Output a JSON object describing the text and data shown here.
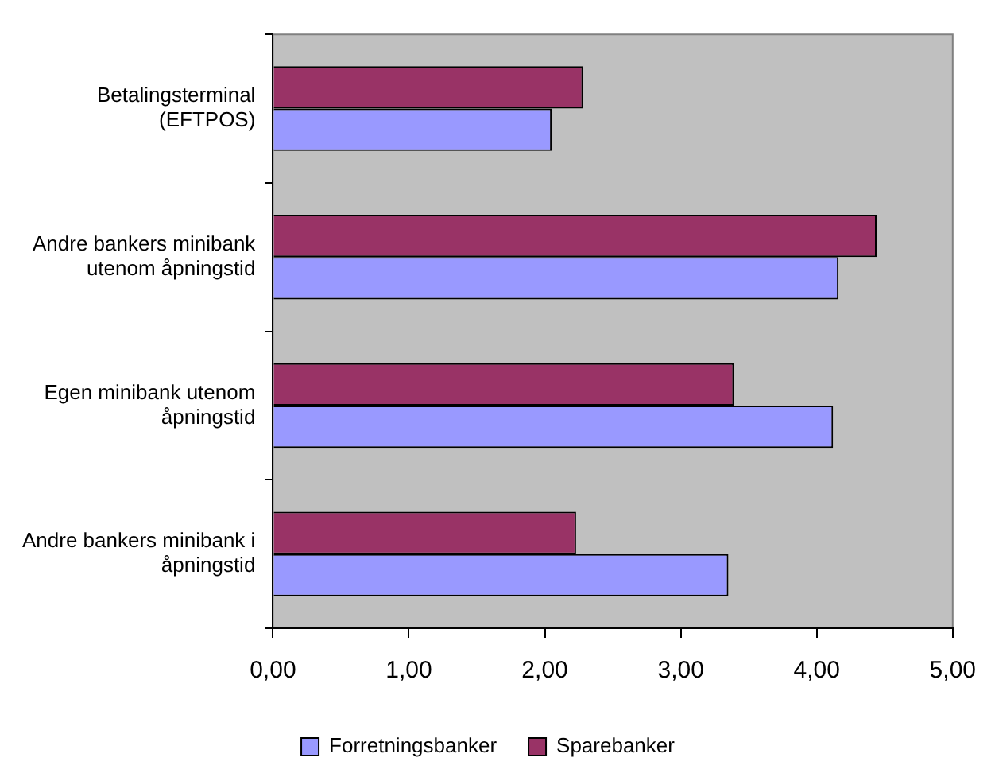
{
  "chart_data": {
    "type": "bar",
    "orientation": "horizontal",
    "categories": [
      "Betalingsterminal (EFTPOS)",
      "Andre bankers minibank utenom åpningstid",
      "Egen minibank utenom åpningstid",
      "Andre bankers minibank i åpningstid"
    ],
    "series": [
      {
        "name": "Forretningsbanker",
        "color": "#9999ff",
        "values": [
          2.05,
          4.16,
          4.12,
          3.35
        ]
      },
      {
        "name": "Sparebanker",
        "color": "#993366",
        "values": [
          2.28,
          4.44,
          3.39,
          2.23
        ]
      }
    ],
    "xlim": [
      0,
      5
    ],
    "xticks": [
      {
        "value": 0,
        "label": "0,00"
      },
      {
        "value": 1,
        "label": "1,00"
      },
      {
        "value": 2,
        "label": "2,00"
      },
      {
        "value": 3,
        "label": "3,00"
      },
      {
        "value": 4,
        "label": "4,00"
      },
      {
        "value": 5,
        "label": "5,00"
      }
    ],
    "grid": false,
    "legend": "bottom"
  }
}
